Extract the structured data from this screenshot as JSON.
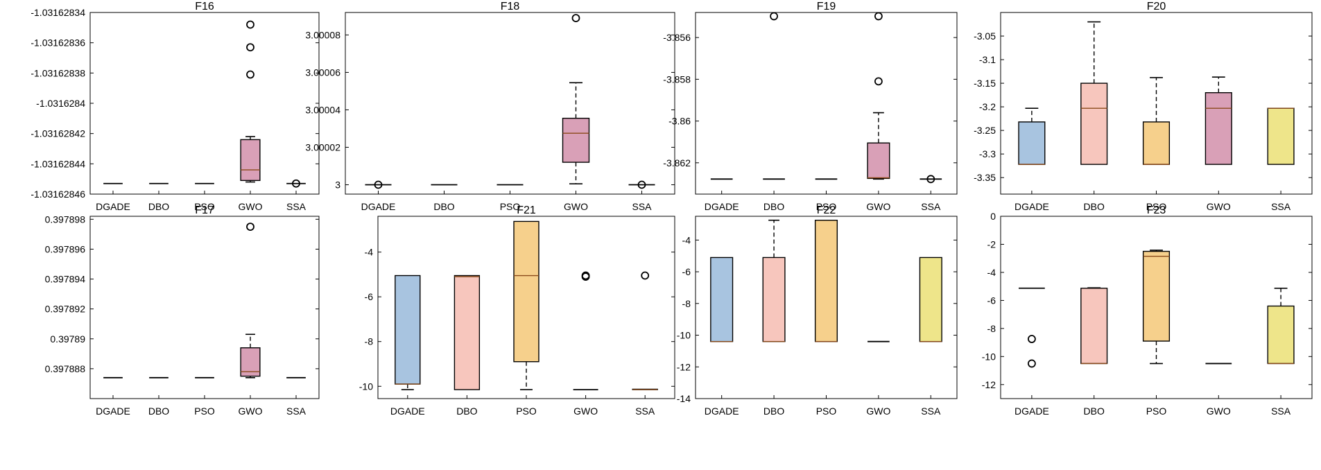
{
  "chart_data": [
    {
      "type": "box",
      "title": "F16",
      "categories": [
        "DGADE",
        "DBO",
        "PSO",
        "GWO",
        "SSA"
      ],
      "ylim": [
        -1.03162846,
        -1.03162834
      ],
      "yticks": [
        -1.03162846,
        -1.03162844,
        -1.03162842,
        -1.0316284,
        -1.03162838,
        -1.03162836,
        -1.03162834
      ],
      "ytick_labels": [
        "-1.03162846",
        "-1.03162844",
        "-1.03162842",
        "-1.0316284",
        "-1.03162838",
        "-1.03162836",
        "-1.03162834"
      ],
      "boxes": [
        {
          "q1": -1.031628453,
          "median": -1.031628453,
          "q3": -1.031628453,
          "lw": -1.031628453,
          "uw": -1.031628453,
          "outliers": [],
          "color": "#a8c4e0"
        },
        {
          "q1": -1.031628453,
          "median": -1.031628453,
          "q3": -1.031628453,
          "lw": -1.031628453,
          "uw": -1.031628453,
          "outliers": [],
          "color": "#f7c6bd"
        },
        {
          "q1": -1.031628453,
          "median": -1.031628453,
          "q3": -1.031628453,
          "lw": -1.031628453,
          "uw": -1.031628453,
          "outliers": [],
          "color": "#f6d08c"
        },
        {
          "q1": -1.031628451,
          "median": -1.031628444,
          "q3": -1.031628424,
          "lw": -1.031628452,
          "uw": -1.031628422,
          "outliers": [
            -1.031628381,
            -1.031628363,
            -1.031628348
          ],
          "color": "#d9a0b7"
        },
        {
          "q1": -1.031628453,
          "median": -1.031628453,
          "q3": -1.031628453,
          "lw": -1.031628453,
          "uw": -1.031628453,
          "outliers": [
            -1.031628453
          ],
          "color": "#eee58a"
        }
      ]
    },
    {
      "type": "box",
      "title": "F18",
      "categories": [
        "DGADE",
        "DBO",
        "PSO",
        "GWO",
        "SSA"
      ],
      "ylim": [
        2.999995,
        3.000092
      ],
      "yticks": [
        3,
        3.00002,
        3.00004,
        3.00006,
        3.00008
      ],
      "ytick_labels": [
        "3",
        "3.00002",
        "3.00004",
        "3.00006",
        "3.00008"
      ],
      "boxes": [
        {
          "q1": 3,
          "median": 3,
          "q3": 3,
          "lw": 3,
          "uw": 3,
          "outliers": [
            3
          ],
          "color": "#a8c4e0"
        },
        {
          "q1": 3,
          "median": 3,
          "q3": 3,
          "lw": 3,
          "uw": 3,
          "outliers": [],
          "color": "#f7c6bd"
        },
        {
          "q1": 3,
          "median": 3,
          "q3": 3,
          "lw": 3,
          "uw": 3,
          "outliers": [],
          "color": "#f6d08c"
        },
        {
          "q1": 3.000012,
          "median": 3.0000275,
          "q3": 3.0000355,
          "lw": 3.0000005,
          "uw": 3.0000545,
          "outliers": [
            3.000089
          ],
          "color": "#d9a0b7"
        },
        {
          "q1": 3,
          "median": 3,
          "q3": 3,
          "lw": 3,
          "uw": 3,
          "outliers": [
            3
          ],
          "color": "#eee58a"
        }
      ]
    },
    {
      "type": "box",
      "title": "F19",
      "categories": [
        "DGADE",
        "DBO",
        "PSO",
        "GWO",
        "SSA"
      ],
      "ylim": [
        -3.8635,
        -3.8548
      ],
      "yticks": [
        -3.862,
        -3.86,
        -3.858,
        -3.856
      ],
      "ytick_labels": [
        "-3.862",
        "-3.86",
        "-3.858",
        "-3.856"
      ],
      "boxes": [
        {
          "q1": -3.86278,
          "median": -3.86278,
          "q3": -3.86278,
          "lw": -3.86278,
          "uw": -3.86278,
          "outliers": [],
          "color": "#a8c4e0"
        },
        {
          "q1": -3.86278,
          "median": -3.86278,
          "q3": -3.86278,
          "lw": -3.86278,
          "uw": -3.86278,
          "outliers": [
            -3.85498
          ],
          "color": "#f7c6bd"
        },
        {
          "q1": -3.86278,
          "median": -3.86278,
          "q3": -3.86278,
          "lw": -3.86278,
          "uw": -3.86278,
          "outliers": [],
          "color": "#f6d08c"
        },
        {
          "q1": -3.86275,
          "median": -3.86272,
          "q3": -3.86105,
          "lw": -3.86278,
          "uw": -3.8596,
          "outliers": [
            -3.8581,
            -3.85498
          ],
          "color": "#d9a0b7"
        },
        {
          "q1": -3.86278,
          "median": -3.86278,
          "q3": -3.86278,
          "lw": -3.86278,
          "uw": -3.86278,
          "outliers": [
            -3.86278
          ],
          "color": "#eee58a"
        }
      ]
    },
    {
      "type": "box",
      "title": "F20",
      "categories": [
        "DGADE",
        "DBO",
        "PSO",
        "GWO",
        "SSA"
      ],
      "ylim": [
        -3.385,
        -3.0
      ],
      "yticks": [
        -3.35,
        -3.3,
        -3.25,
        -3.2,
        -3.15,
        -3.1,
        -3.05
      ],
      "ytick_labels": [
        "-3.35",
        "-3.3",
        "-3.25",
        "-3.2",
        "-3.15",
        "-3.1",
        "-3.05"
      ],
      "boxes": [
        {
          "q1": -3.322,
          "median": -3.322,
          "q3": -3.232,
          "lw": -3.322,
          "uw": -3.203,
          "outliers": [],
          "color": "#a8c4e0"
        },
        {
          "q1": -3.322,
          "median": -3.203,
          "q3": -3.15,
          "lw": -3.322,
          "uw": -3.02,
          "outliers": [],
          "color": "#f7c6bd"
        },
        {
          "q1": -3.322,
          "median": -3.322,
          "q3": -3.232,
          "lw": -3.322,
          "uw": -3.138,
          "outliers": [],
          "color": "#f6d08c"
        },
        {
          "q1": -3.322,
          "median": -3.203,
          "q3": -3.17,
          "lw": -3.322,
          "uw": -3.137,
          "outliers": [],
          "color": "#d9a0b7"
        },
        {
          "q1": -3.322,
          "median": -3.203,
          "q3": -3.203,
          "lw": -3.322,
          "uw": -3.203,
          "outliers": [],
          "color": "#eee58a"
        }
      ]
    },
    {
      "type": "box",
      "title": "F17",
      "categories": [
        "DGADE",
        "DBO",
        "PSO",
        "GWO",
        "SSA"
      ],
      "ylim": [
        0.397886,
        0.3978982
      ],
      "yticks": [
        0.397888,
        0.39789,
        0.397892,
        0.397894,
        0.397896,
        0.397898
      ],
      "ytick_labels": [
        "0.397888",
        "0.39789",
        "0.397892",
        "0.397894",
        "0.397896",
        "0.397898"
      ],
      "boxes": [
        {
          "q1": 0.3978874,
          "median": 0.3978874,
          "q3": 0.3978874,
          "lw": 0.3978874,
          "uw": 0.3978874,
          "outliers": [],
          "color": "#a8c4e0"
        },
        {
          "q1": 0.3978874,
          "median": 0.3978874,
          "q3": 0.3978874,
          "lw": 0.3978874,
          "uw": 0.3978874,
          "outliers": [],
          "color": "#f7c6bd"
        },
        {
          "q1": 0.3978874,
          "median": 0.3978874,
          "q3": 0.3978874,
          "lw": 0.3978874,
          "uw": 0.3978874,
          "outliers": [],
          "color": "#f6d08c"
        },
        {
          "q1": 0.3978875,
          "median": 0.3978878,
          "q3": 0.3978894,
          "lw": 0.3978874,
          "uw": 0.3978903,
          "outliers": [
            0.3978975
          ],
          "color": "#d9a0b7"
        },
        {
          "q1": 0.3978874,
          "median": 0.3978874,
          "q3": 0.3978874,
          "lw": 0.3978874,
          "uw": 0.3978874,
          "outliers": [],
          "color": "#eee58a"
        }
      ]
    },
    {
      "type": "box",
      "title": "F21",
      "categories": [
        "DGADE",
        "DBO",
        "PSO",
        "GWO",
        "SSA"
      ],
      "ylim": [
        -10.55,
        -2.4
      ],
      "yticks": [
        -10,
        -8,
        -6,
        -4
      ],
      "ytick_labels": [
        "-10",
        "-8",
        "-6",
        "-4"
      ],
      "boxes": [
        {
          "q1": -9.9,
          "median": -9.9,
          "q3": -5.05,
          "lw": -10.15,
          "uw": -5.05,
          "outliers": [],
          "color": "#a8c4e0"
        },
        {
          "q1": -10.15,
          "median": -5.1,
          "q3": -5.05,
          "lw": -10.15,
          "uw": -5.05,
          "outliers": [],
          "color": "#f7c6bd"
        },
        {
          "q1": -8.9,
          "median": -5.05,
          "q3": -2.63,
          "lw": -10.15,
          "uw": -2.63,
          "outliers": [],
          "color": "#f6d08c"
        },
        {
          "q1": -10.15,
          "median": -10.15,
          "q3": -10.15,
          "lw": -10.15,
          "uw": -10.15,
          "outliers": [
            -5.05,
            -5.1
          ],
          "color": "#d9a0b7"
        },
        {
          "q1": -10.15,
          "median": -10.15,
          "q3": -10.13,
          "lw": -10.15,
          "uw": -10.13,
          "outliers": [
            -5.05
          ],
          "color": "#eee58a"
        }
      ]
    },
    {
      "type": "box",
      "title": "F22",
      "categories": [
        "DGADE",
        "DBO",
        "PSO",
        "GWO",
        "SSA"
      ],
      "ylim": [
        -14,
        -2.5
      ],
      "yticks": [
        -14,
        -12,
        -10,
        -8,
        -6,
        -4
      ],
      "ytick_labels": [
        "-14",
        "-12",
        "-10",
        "-8",
        "-6",
        "-4"
      ],
      "boxes": [
        {
          "q1": -10.4,
          "median": -10.4,
          "q3": -5.1,
          "lw": -10.4,
          "uw": -5.1,
          "outliers": [],
          "color": "#a8c4e0"
        },
        {
          "q1": -10.4,
          "median": -10.4,
          "q3": -5.1,
          "lw": -10.4,
          "uw": -2.75,
          "outliers": [],
          "color": "#f7c6bd"
        },
        {
          "q1": -10.4,
          "median": -10.4,
          "q3": -2.75,
          "lw": -10.4,
          "uw": -2.75,
          "outliers": [],
          "color": "#f6d08c"
        },
        {
          "q1": -10.4,
          "median": -10.4,
          "q3": -10.4,
          "lw": -10.4,
          "uw": -10.4,
          "outliers": [],
          "color": "#d9a0b7"
        },
        {
          "q1": -10.4,
          "median": -10.4,
          "q3": -5.1,
          "lw": -10.4,
          "uw": -5.1,
          "outliers": [],
          "color": "#eee58a"
        }
      ]
    },
    {
      "type": "box",
      "title": "F23",
      "categories": [
        "DGADE",
        "DBO",
        "PSO",
        "GWO",
        "SSA"
      ],
      "ylim": [
        -13,
        0
      ],
      "yticks": [
        -12,
        -10,
        -8,
        -6,
        -4,
        -2,
        0
      ],
      "ytick_labels": [
        "-12",
        "-10",
        "-8",
        "-6",
        "-4",
        "-2",
        "0"
      ],
      "boxes": [
        {
          "q1": -5.13,
          "median": -5.13,
          "q3": -5.13,
          "lw": -5.13,
          "uw": -5.13,
          "outliers": [
            -8.75,
            -10.5
          ],
          "color": "#a8c4e0"
        },
        {
          "q1": -10.5,
          "median": -10.5,
          "q3": -5.13,
          "lw": -10.5,
          "uw": -5.1,
          "outliers": [],
          "color": "#f7c6bd"
        },
        {
          "q1": -8.9,
          "median": -2.85,
          "q3": -2.5,
          "lw": -10.5,
          "uw": -2.42,
          "outliers": [],
          "color": "#f6d08c"
        },
        {
          "q1": -10.5,
          "median": -10.5,
          "q3": -10.5,
          "lw": -10.5,
          "uw": -10.5,
          "outliers": [],
          "color": "#d9a0b7"
        },
        {
          "q1": -10.5,
          "median": -10.5,
          "q3": -6.4,
          "lw": -10.5,
          "uw": -5.13,
          "outliers": [],
          "color": "#eee58a"
        }
      ]
    }
  ]
}
